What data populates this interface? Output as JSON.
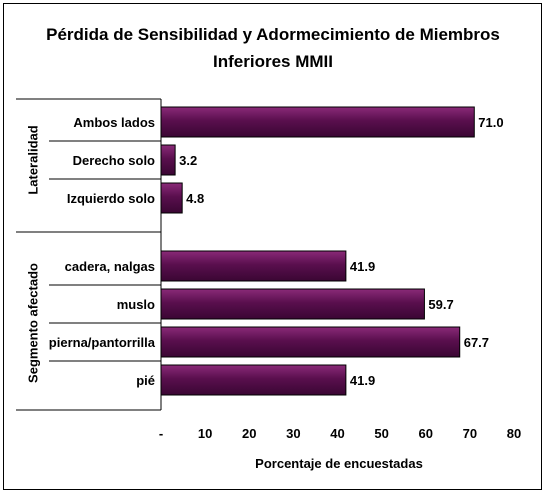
{
  "chart_data": {
    "type": "bar",
    "orientation": "horizontal",
    "title_lines": [
      "Pérdida de Sensibilidad y Adormecimiento de Miembros",
      "Inferiores MMII"
    ],
    "xlabel": "Porcentaje de encuestadas",
    "ylabel": "",
    "xlim": [
      0,
      80
    ],
    "x_ticks": [
      "-",
      "10",
      "20",
      "30",
      "40",
      "50",
      "60",
      "70",
      "80"
    ],
    "grid": false,
    "legend": "none",
    "bar_color": "#5a0f4e",
    "groups": [
      {
        "name": "Lateralidad",
        "categories": [
          "Ambos lados",
          "Derecho solo",
          "Izquierdo solo"
        ],
        "values": [
          71.0,
          3.2,
          4.8
        ],
        "labels": [
          "71.0",
          "3.2",
          "4.8"
        ]
      },
      {
        "name": "Segmento afectado",
        "categories": [
          "cadera, nalgas",
          "muslo",
          "pierna/pantorrilla",
          "pié"
        ],
        "values": [
          41.9,
          59.7,
          67.7,
          41.9
        ],
        "labels": [
          "41.9",
          "59.7",
          "67.7",
          "41.9"
        ]
      }
    ]
  }
}
